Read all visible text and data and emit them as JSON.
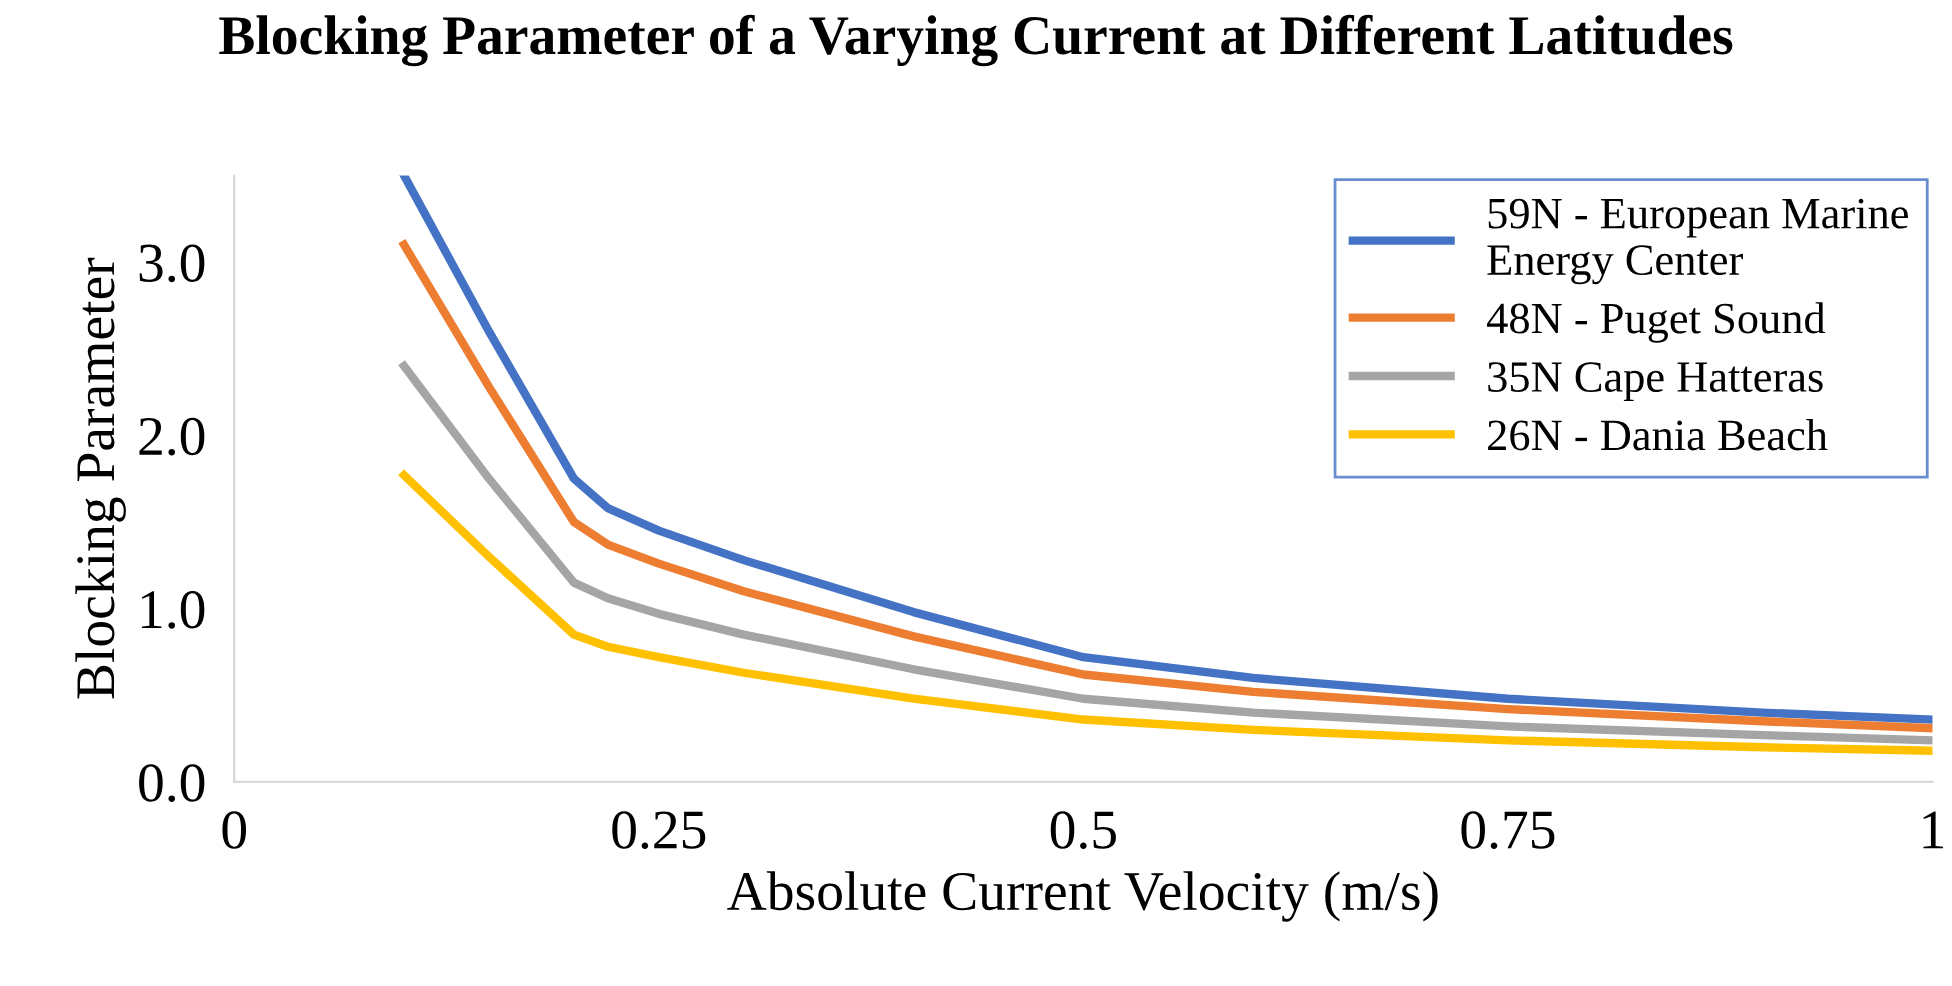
{
  "chart_data": {
    "type": "line",
    "title": "Blocking Parameter of a Varying Current at Different Latitudes",
    "xlabel": "Absolute Current Velocity (m/s)",
    "ylabel": "Blocking Parameter",
    "x": [
      0.1,
      0.15,
      0.2,
      0.22,
      0.25,
      0.3,
      0.4,
      0.5,
      0.6,
      0.75,
      0.9,
      1.0
    ],
    "series": [
      {
        "name": "59N - European Marine Energy Center",
        "color": "#4472c4",
        "values": [
          3.5,
          2.6,
          1.75,
          1.58,
          1.45,
          1.28,
          0.98,
          0.72,
          0.6,
          0.48,
          0.4,
          0.36
        ]
      },
      {
        "name": "48N - Puget Sound",
        "color": "#ed7d31",
        "values": [
          3.1,
          2.28,
          1.5,
          1.37,
          1.26,
          1.1,
          0.84,
          0.62,
          0.52,
          0.42,
          0.35,
          0.31
        ]
      },
      {
        "name": "35N Cape Hatteras",
        "color": "#a5a5a5",
        "values": [
          2.4,
          1.75,
          1.15,
          1.06,
          0.97,
          0.85,
          0.65,
          0.48,
          0.4,
          0.32,
          0.27,
          0.24
        ]
      },
      {
        "name": "26N - Dania Beach",
        "color": "#ffc000",
        "values": [
          1.77,
          1.3,
          0.85,
          0.78,
          0.72,
          0.63,
          0.48,
          0.36,
          0.3,
          0.24,
          0.2,
          0.18
        ]
      }
    ],
    "xlim": [
      0,
      1
    ],
    "xticks": [
      0,
      0.25,
      0.5,
      0.75,
      1
    ],
    "ylim": [
      0,
      3.5
    ],
    "yticks": [
      {
        "value": 0,
        "label": "0.0"
      },
      {
        "value": 1,
        "label": "1.0"
      },
      {
        "value": 2,
        "label": "2.0"
      },
      {
        "value": 3,
        "label": "3.0"
      }
    ],
    "grid": false,
    "legend": "top right",
    "marker": "none",
    "line_style": "solid"
  }
}
